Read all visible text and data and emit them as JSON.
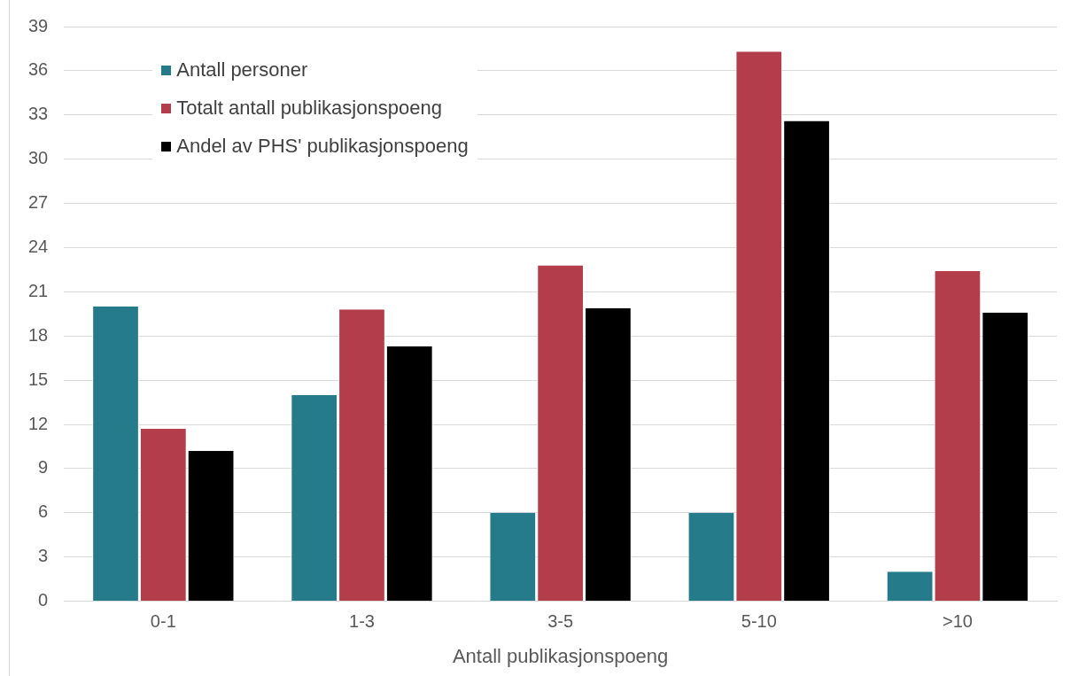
{
  "chart_data": {
    "type": "bar",
    "xlabel": "Antall publikasjonspoeng",
    "categories": [
      "0-1",
      "1-3",
      "3-5",
      "5-10",
      ">10"
    ],
    "series": [
      {
        "name": "Antall personer",
        "color": "#267b8b",
        "values": [
          20,
          14,
          6,
          6,
          2
        ]
      },
      {
        "name": "Totalt antall publikasjonspoeng",
        "color": "#b33d4b",
        "values": [
          11.7,
          19.8,
          22.8,
          37.3,
          22.4
        ]
      },
      {
        "name": "Andel av PHS' publikasjonspoeng",
        "color": "#000000",
        "values": [
          10.2,
          17.3,
          19.9,
          32.6,
          19.6
        ]
      }
    ],
    "ylim": [
      0,
      39
    ],
    "yticks": [
      0,
      3,
      6,
      9,
      12,
      15,
      18,
      21,
      24,
      27,
      30,
      33,
      36,
      39
    ],
    "grid": "y",
    "legend": "top left"
  }
}
